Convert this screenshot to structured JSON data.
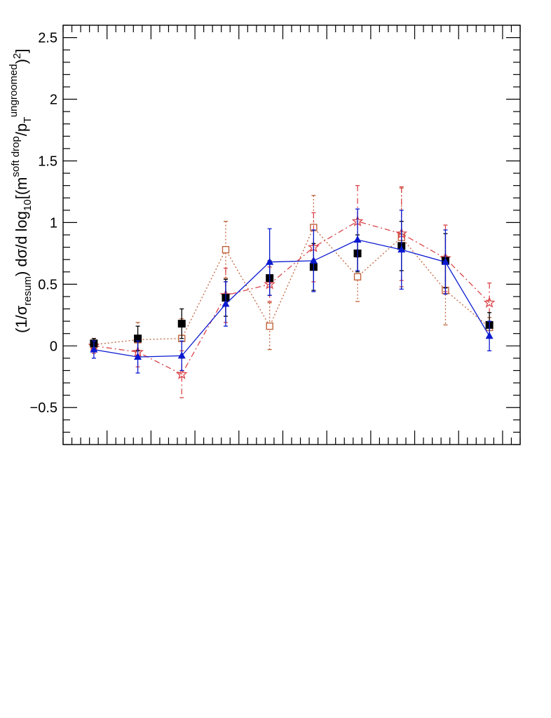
{
  "chart_data": {
    "type": "scatter",
    "title": "",
    "xlabel": "",
    "ylabel": {
      "prefix": "(1/σ",
      "sub1": "resum",
      "mid": ") dσ/d log",
      "sub2": "10",
      "bracket": "[(m",
      "sup1": "soft drop",
      "slash": "/p",
      "sub3": "T",
      "sup2": "ungroomed",
      "close": ")",
      "sup3": "2",
      "end": "]"
    },
    "xlim": [
      0,
      10.4
    ],
    "ylim": [
      -0.8,
      2.6
    ],
    "yticks": [
      -0.5,
      0,
      0.5,
      1,
      1.5,
      2,
      2.5
    ],
    "ytick_labels": [
      "−0.5",
      "0",
      "0.5",
      "1",
      "1.5",
      "2",
      "2.5"
    ],
    "x": [
      0.7,
      1.7,
      2.7,
      3.7,
      4.7,
      5.7,
      6.7,
      7.7,
      8.7,
      9.7
    ],
    "grid": false,
    "series": [
      {
        "marker": "open-square",
        "line": "dotted",
        "color": "#c0643c",
        "values": [
          0.01,
          0.05,
          0.06,
          0.78,
          0.16,
          0.96,
          0.56,
          0.88,
          0.45,
          0.15
        ],
        "errors": [
          0.05,
          0.14,
          0.16,
          0.23,
          0.19,
          0.26,
          0.2,
          0.4,
          0.28,
          0.08
        ]
      },
      {
        "marker": "open-star",
        "line": "dashdot",
        "color": "#d9454a",
        "values": [
          0.0,
          -0.05,
          -0.23,
          0.41,
          0.5,
          0.8,
          1.01,
          0.91,
          0.71,
          0.35
        ],
        "errors": [
          0.06,
          0.12,
          0.19,
          0.22,
          0.14,
          0.28,
          0.29,
          0.38,
          0.27,
          0.16
        ]
      },
      {
        "marker": "filled-square",
        "line": "none",
        "color": "#000000",
        "values": [
          0.02,
          0.06,
          0.18,
          0.39,
          0.55,
          0.64,
          0.75,
          0.81,
          0.69,
          0.17
        ],
        "errors": [
          0.04,
          0.1,
          0.12,
          0.15,
          0.14,
          0.19,
          0.15,
          0.2,
          0.22,
          0.1
        ]
      },
      {
        "marker": "filled-triangle",
        "line": "solid",
        "color": "#0a19d0",
        "values": [
          -0.03,
          -0.09,
          -0.08,
          0.34,
          0.68,
          0.69,
          0.86,
          0.78,
          0.68,
          0.08
        ],
        "errors": [
          0.07,
          0.13,
          0.12,
          0.18,
          0.27,
          0.25,
          0.25,
          0.32,
          0.26,
          0.12
        ]
      }
    ]
  }
}
